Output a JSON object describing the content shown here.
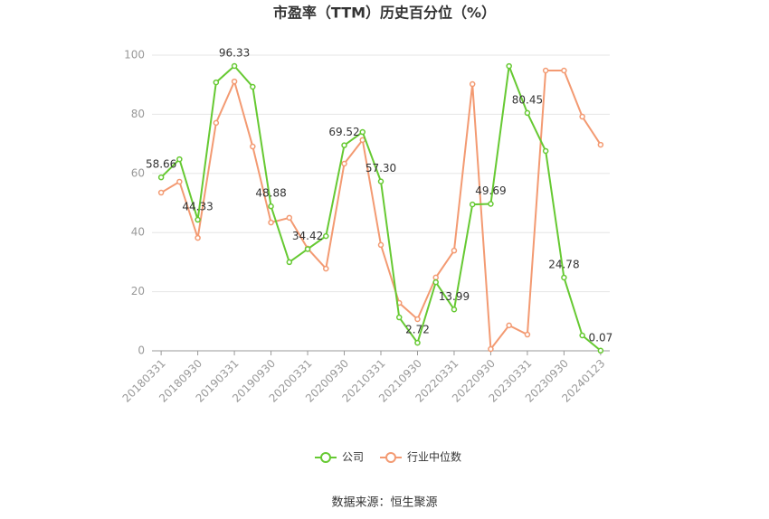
{
  "chart_data": {
    "type": "line",
    "title": "市盈率（TTM）历史百分位（%）",
    "source": "数据来源：恒生聚源",
    "categories": [
      "20180331",
      null,
      "20180930",
      null,
      "20190331",
      null,
      "20190930",
      null,
      "20200331",
      null,
      "20200930",
      null,
      "20210331",
      null,
      "20210930",
      null,
      "20220331",
      null,
      "20220930",
      null,
      "20230331",
      null,
      "20230930",
      null,
      "20240123"
    ],
    "series": [
      {
        "name": "公司",
        "color": "#66c932",
        "values": [
          58.66,
          64.8,
          44.33,
          90.8,
          96.33,
          89.3,
          48.88,
          30.0,
          34.42,
          38.8,
          69.52,
          74.0,
          57.3,
          11.3,
          2.72,
          23.2,
          13.99,
          49.5,
          49.69,
          96.3,
          80.45,
          67.6,
          24.78,
          5.2,
          0.07
        ],
        "value_labels": [
          "58.66",
          null,
          "44.33",
          null,
          "96.33",
          null,
          "48.88",
          null,
          "34.42",
          null,
          "69.52",
          null,
          "57.30",
          null,
          "2.72",
          null,
          "13.99",
          null,
          "49.69",
          null,
          "80.45",
          null,
          "24.78",
          null,
          "0.07"
        ]
      },
      {
        "name": "行业中位数",
        "color": "#f39a72",
        "values": [
          53.5,
          57.2,
          38.2,
          77.1,
          91.1,
          69.1,
          43.4,
          45.0,
          34.6,
          27.8,
          63.3,
          71.3,
          35.8,
          16.2,
          10.7,
          24.8,
          33.9,
          90.2,
          0.6,
          8.6,
          5.5,
          94.8,
          94.8,
          79.2,
          69.7
        ]
      }
    ],
    "ylim": [
      0,
      100
    ],
    "yticks": [
      0,
      20,
      40,
      60,
      80,
      100
    ],
    "grid": true,
    "legend": "bottom"
  }
}
